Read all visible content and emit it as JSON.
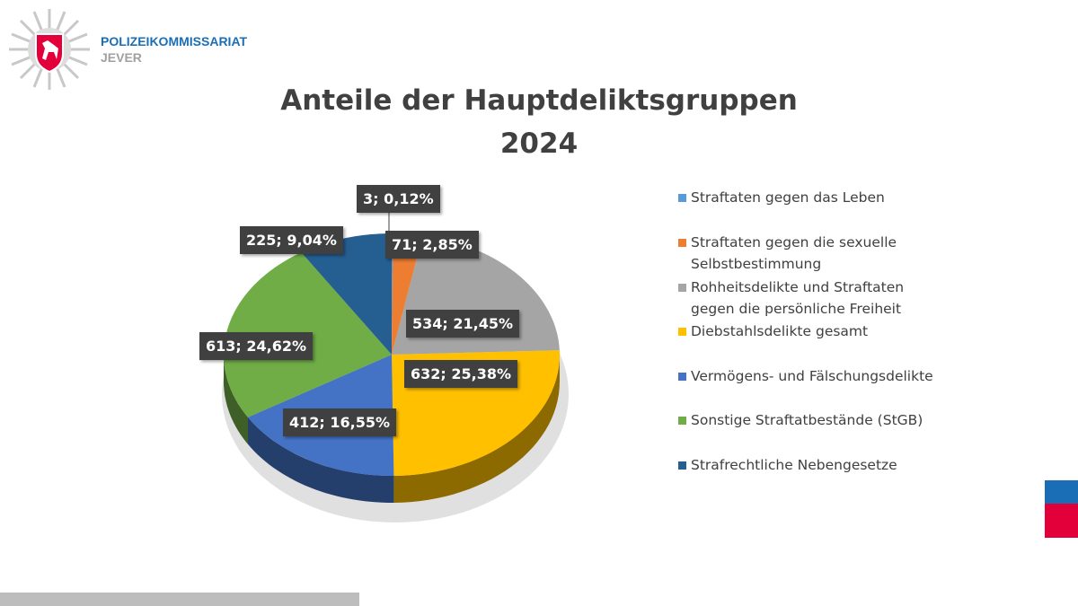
{
  "header": {
    "org_name": "POLIZEIKOMMISSARIAT",
    "org_location": "JEVER",
    "logo": "police-star-lower-saxony-horse"
  },
  "chart_data": {
    "type": "pie",
    "style": "3d",
    "title": "Anteile der Hauptdeliktsgruppen",
    "subtitle": "2024",
    "legend_position": "right",
    "categories": [
      "Straftaten gegen das Leben",
      "Straftaten gegen die sexuelle Selbstbestimmung",
      "Rohheitsdelikte und Straftaten gegen die persönliche Freiheit",
      "Diebstahlsdelikte gesamt",
      "Vermögens- und Fälschungsdelikte",
      "Sonstige Straftatbestände (StGB)",
      "Strafrechtliche Nebengesetze"
    ],
    "values": [
      3,
      71,
      534,
      632,
      412,
      613,
      225
    ],
    "percentages": [
      0.12,
      2.85,
      21.45,
      25.38,
      16.55,
      24.62,
      9.04
    ],
    "data_labels": [
      "3; 0,12%",
      "71; 2,85%",
      "534; 21,45%",
      "632; 25,38%",
      "412; 16,55%",
      "613; 24,62%",
      "225; 9,04%"
    ],
    "colors": [
      "#5B9BD5",
      "#ED7D31",
      "#A5A5A5",
      "#FFC000",
      "#4472C4",
      "#70AD47",
      "#255E91"
    ]
  },
  "footer": {
    "colors": [
      "#1a6eb5",
      "#e3003a",
      "#bdbdbd"
    ]
  }
}
